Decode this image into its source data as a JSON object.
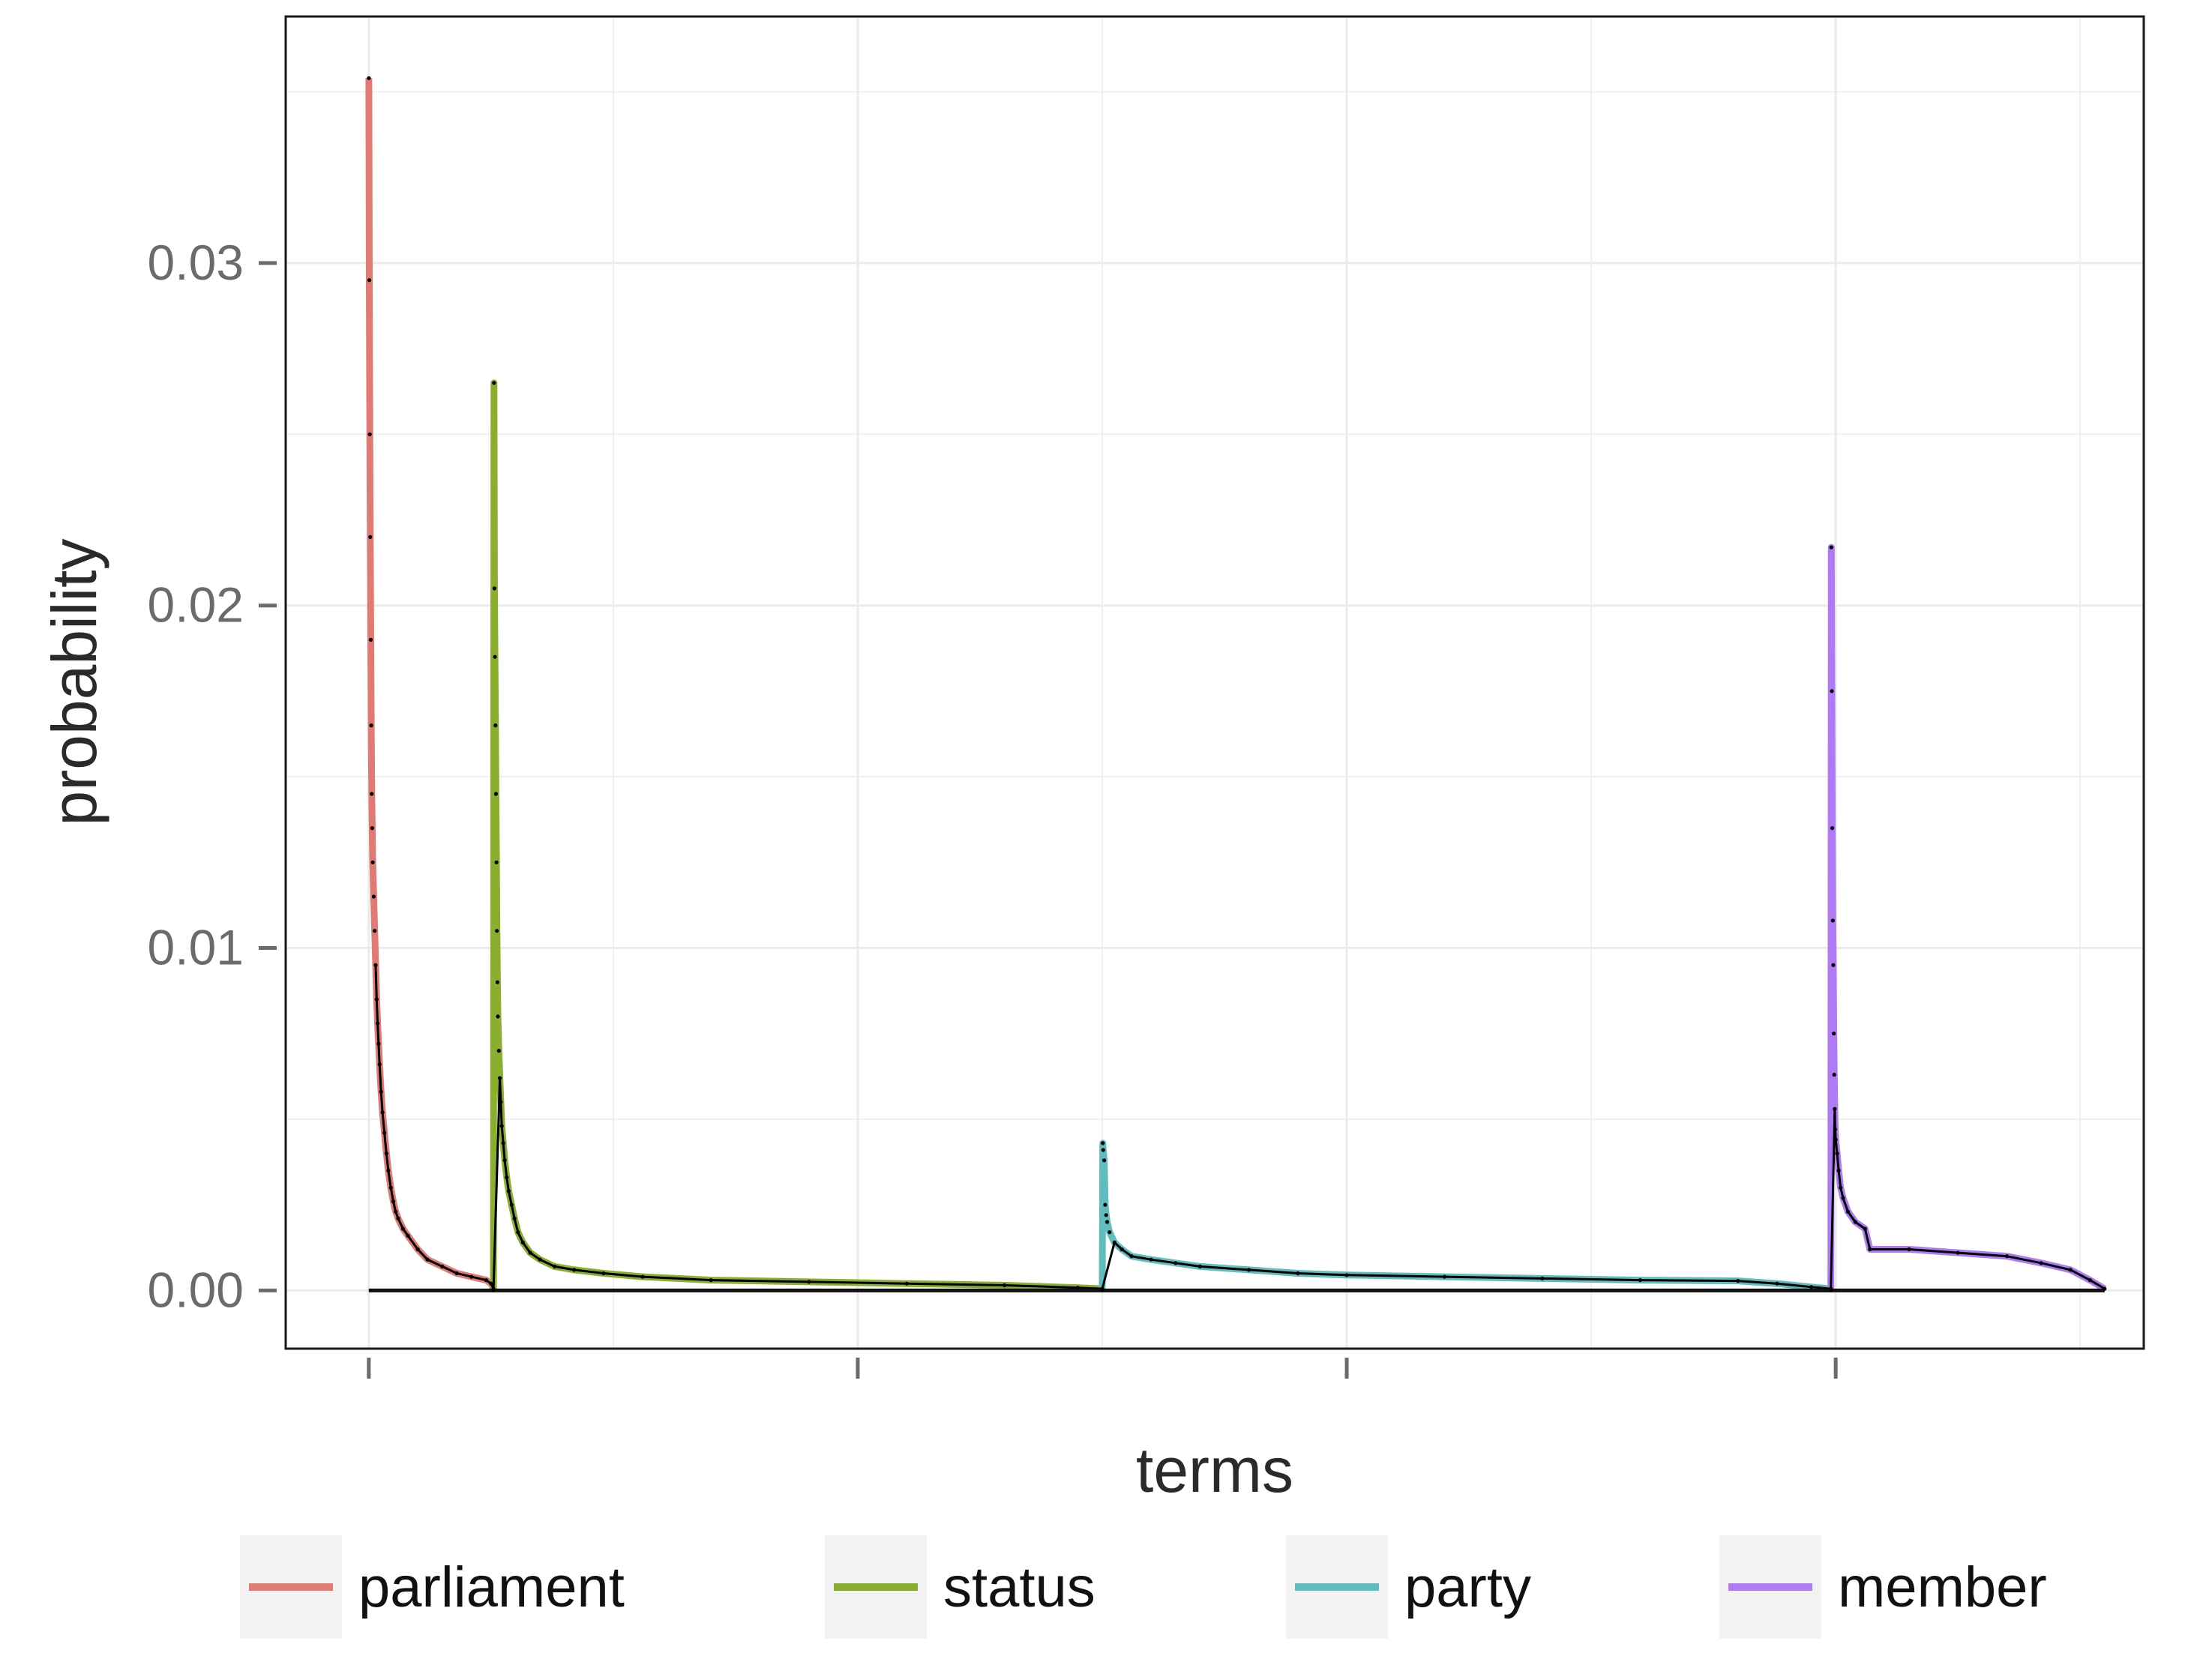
{
  "chart_data": {
    "type": "line",
    "title": "",
    "xlabel": "terms",
    "ylabel": "probability",
    "ylim": [
      -0.0017,
      0.0372
    ],
    "xlim": [
      -170,
      3630
    ],
    "xticks": [
      0,
      1000,
      2000,
      3000
    ],
    "xtick_labels": [
      "",
      "",
      "",
      ""
    ],
    "yticks": [
      0.0,
      0.01,
      0.02,
      0.03
    ],
    "ytick_labels": [
      "0.00",
      "0.01",
      "0.02",
      "0.03"
    ],
    "grid": true,
    "legend": "bottom",
    "series": [
      {
        "name": "parliament",
        "color": "#E07A72",
        "points": [
          [
            0,
            0.0354
          ],
          [
            1,
            0.0295
          ],
          [
            2,
            0.025
          ],
          [
            3,
            0.022
          ],
          [
            4,
            0.019
          ],
          [
            5,
            0.0165
          ],
          [
            6,
            0.0145
          ],
          [
            7,
            0.0135
          ],
          [
            8,
            0.0125
          ],
          [
            10,
            0.0115
          ],
          [
            12,
            0.0105
          ],
          [
            14,
            0.0095
          ],
          [
            16,
            0.0085
          ],
          [
            18,
            0.0078
          ],
          [
            20,
            0.0072
          ],
          [
            22,
            0.0066
          ],
          [
            25,
            0.0058
          ],
          [
            28,
            0.0052
          ],
          [
            32,
            0.0046
          ],
          [
            36,
            0.004
          ],
          [
            40,
            0.0035
          ],
          [
            45,
            0.003
          ],
          [
            50,
            0.0026
          ],
          [
            55,
            0.0023
          ],
          [
            60,
            0.0021
          ],
          [
            70,
            0.0018
          ],
          [
            80,
            0.0016
          ],
          [
            100,
            0.0012
          ],
          [
            120,
            0.0009
          ],
          [
            150,
            0.0007
          ],
          [
            180,
            0.0005
          ],
          [
            210,
            0.0004
          ],
          [
            240,
            0.0003
          ],
          [
            250,
            0.0002
          ],
          [
            255,
            5e-05
          ]
        ]
      },
      {
        "name": "status",
        "color": "#8AAE2D",
        "points": [
          [
            255,
            0
          ],
          [
            256,
            0.0265
          ],
          [
            257,
            0.0205
          ],
          [
            258,
            0.0185
          ],
          [
            259,
            0.0165
          ],
          [
            260,
            0.0145
          ],
          [
            261,
            0.0125
          ],
          [
            262,
            0.0105
          ],
          [
            263,
            0.009
          ],
          [
            264,
            0.008
          ],
          [
            266,
            0.007
          ],
          [
            268,
            0.0062
          ],
          [
            270,
            0.0055
          ],
          [
            272,
            0.0048
          ],
          [
            275,
            0.0043
          ],
          [
            278,
            0.0038
          ],
          [
            282,
            0.0033
          ],
          [
            286,
            0.0029
          ],
          [
            292,
            0.0025
          ],
          [
            298,
            0.0021
          ],
          [
            305,
            0.0017
          ],
          [
            315,
            0.0014
          ],
          [
            330,
            0.0011
          ],
          [
            350,
            0.0009
          ],
          [
            380,
            0.0007
          ],
          [
            420,
            0.0006
          ],
          [
            480,
            0.0005
          ],
          [
            560,
            0.0004
          ],
          [
            700,
            0.0003
          ],
          [
            900,
            0.00025
          ],
          [
            1100,
            0.0002
          ],
          [
            1300,
            0.00015
          ],
          [
            1450,
            8e-05
          ],
          [
            1500,
            5e-05
          ]
        ]
      },
      {
        "name": "party",
        "color": "#5FBDBF",
        "points": [
          [
            1500,
            0
          ],
          [
            1501,
            0.0043
          ],
          [
            1502,
            0.0041
          ],
          [
            1504,
            0.0038
          ],
          [
            1506,
            0.0025
          ],
          [
            1508,
            0.0022
          ],
          [
            1510,
            0.002
          ],
          [
            1515,
            0.0017
          ],
          [
            1525,
            0.0014
          ],
          [
            1540,
            0.0012
          ],
          [
            1560,
            0.001
          ],
          [
            1600,
            0.0009
          ],
          [
            1650,
            0.0008
          ],
          [
            1700,
            0.0007
          ],
          [
            1800,
            0.0006
          ],
          [
            1900,
            0.0005
          ],
          [
            2000,
            0.00045
          ],
          [
            2200,
            0.0004
          ],
          [
            2400,
            0.00035
          ],
          [
            2600,
            0.0003
          ],
          [
            2800,
            0.00028
          ],
          [
            2880,
            0.0002
          ],
          [
            2950,
            0.0001
          ],
          [
            2990,
            5e-05
          ]
        ]
      },
      {
        "name": "member",
        "color": "#B07AF5",
        "points": [
          [
            2990,
            0
          ],
          [
            2991,
            0.0217
          ],
          [
            2992,
            0.0175
          ],
          [
            2993,
            0.0135
          ],
          [
            2994,
            0.0108
          ],
          [
            2995,
            0.0095
          ],
          [
            2996,
            0.0075
          ],
          [
            2997,
            0.0063
          ],
          [
            2998,
            0.0053
          ],
          [
            2999,
            0.0047
          ],
          [
            3000,
            0.0044
          ],
          [
            3003,
            0.004
          ],
          [
            3006,
            0.0035
          ],
          [
            3010,
            0.003
          ],
          [
            3015,
            0.0027
          ],
          [
            3025,
            0.0023
          ],
          [
            3040,
            0.002
          ],
          [
            3060,
            0.0018
          ],
          [
            3070,
            0.0012
          ],
          [
            3150,
            0.0012
          ],
          [
            3250,
            0.0011
          ],
          [
            3350,
            0.001
          ],
          [
            3420,
            0.0008
          ],
          [
            3480,
            0.0006
          ],
          [
            3520,
            0.0003
          ],
          [
            3550,
            5e-05
          ]
        ]
      }
    ]
  }
}
